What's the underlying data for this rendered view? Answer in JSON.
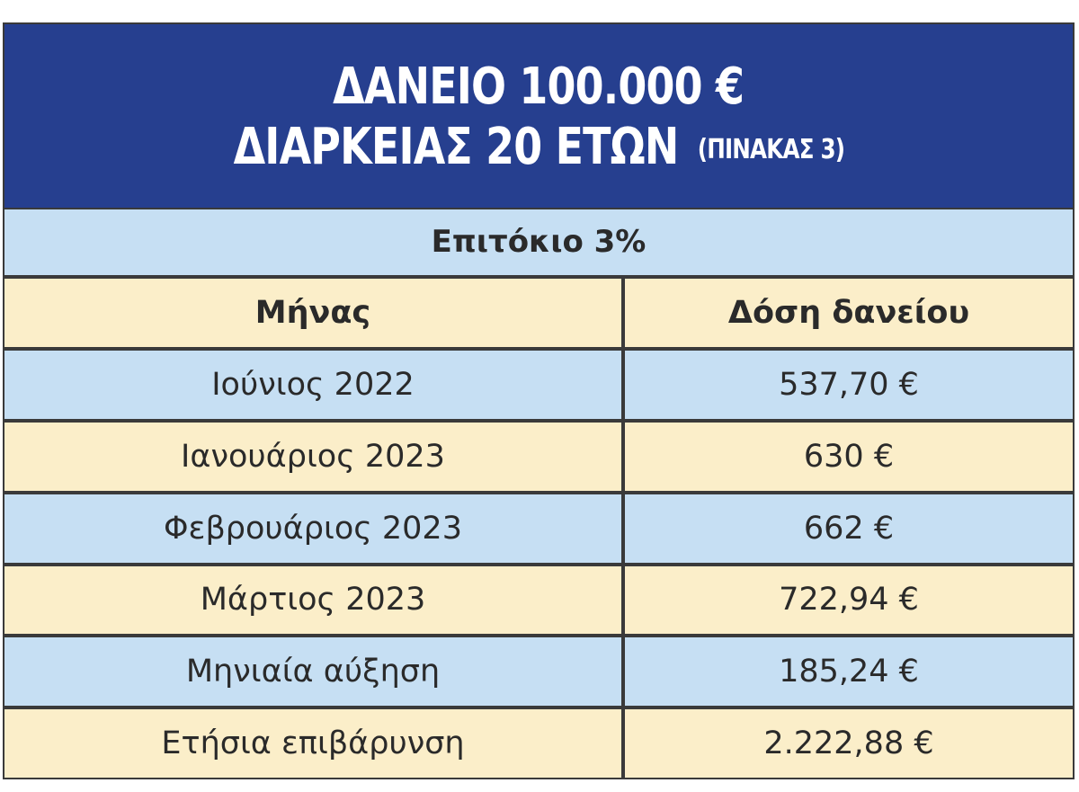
{
  "header": {
    "title_line1": "ΔΑΝΕΙΟ 100.000 €",
    "title_line2": "ΔΙΑΡΚΕΙΑΣ 20 ΕΤΩΝ",
    "table_label": "(ΠΙΝΑΚΑΣ 3)"
  },
  "rate_label": "Επιτόκιο 3%",
  "columns": [
    "Μήνας",
    "Δόση δανείου"
  ],
  "rows": [
    {
      "month": "Ιούνιος 2022",
      "payment": "537,70 €"
    },
    {
      "month": "Ιανουάριος 2023",
      "payment": "630 €"
    },
    {
      "month": "Φεβρουάριος 2023",
      "payment": "662 €"
    },
    {
      "month": "Μάρτιος 2023",
      "payment": "722,94 €"
    },
    {
      "month": "Μηνιαία αύξηση",
      "payment": "185,24 €"
    },
    {
      "month": "Ετήσια επιβάρυνση",
      "payment": "2.222,88 €"
    }
  ],
  "colors": {
    "header_bg": "#263f8f",
    "blue_row": "#c6dff3",
    "beige_row": "#fbeec9",
    "border": "#3a3a3a"
  }
}
